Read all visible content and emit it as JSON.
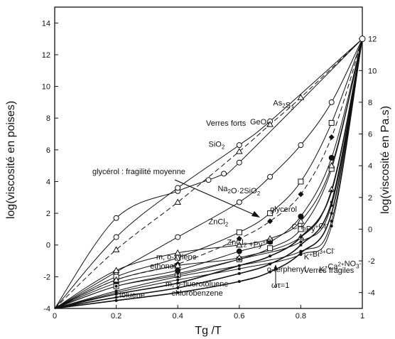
{
  "chart_data": {
    "type": "line",
    "title": "",
    "xlabel": "Tg /T",
    "ylabel_left": "log(viscosité en poises)",
    "ylabel_right": "log(viscosité en Pa.s)",
    "xlim": [
      0,
      1
    ],
    "ylim_left": [
      -4,
      15
    ],
    "ylim_right": [
      -5,
      14
    ],
    "x_ticks": [
      "0",
      "0.2",
      "0.4",
      "0.6",
      "0.8",
      "1"
    ],
    "y_ticks_left": [
      "-4",
      "-2",
      "0",
      "2",
      "4",
      "6",
      "8",
      "10",
      "12",
      "14"
    ],
    "y_ticks_right": [
      "-4",
      "-2",
      "0",
      "2",
      "4",
      "6",
      "8",
      "10",
      "12"
    ],
    "grid": false,
    "annotations": {
      "strong": "Verres forts",
      "fragile": "Verres fragiles",
      "glycerol": "glycérol : fragilité moyenne",
      "omega": "ωτ=1"
    },
    "series": [
      {
        "name": "SiO2",
        "marker": "circle",
        "x": [
          0,
          0.2,
          0.4,
          0.5,
          0.55,
          0.6,
          1
        ],
        "y": [
          -4,
          1.7,
          3.4,
          4.1,
          4.5,
          5.2,
          13
        ]
      },
      {
        "name": "GeO2",
        "marker": "circle",
        "x": [
          0,
          0.2,
          0.4,
          0.6,
          0.7,
          1
        ],
        "y": [
          -4,
          0.5,
          3.6,
          6.3,
          7.8,
          13
        ]
      },
      {
        "name": "As2S3",
        "marker": "triangle",
        "x": [
          0,
          0.2,
          0.4,
          0.6,
          0.7,
          0.8,
          1
        ],
        "y": [
          -4,
          -0.3,
          2.7,
          5.9,
          7.6,
          9.3,
          13
        ]
      },
      {
        "name": "Na2O·2SiO2",
        "marker": "circle",
        "x": [
          0,
          0.2,
          0.4,
          0.6,
          0.7,
          0.8,
          0.9,
          1
        ],
        "y": [
          -4,
          -1.7,
          0.5,
          2.7,
          4.3,
          6.3,
          9.0,
          13
        ]
      },
      {
        "name": "glycerol",
        "marker": "square",
        "x": [
          0,
          0.2,
          0.4,
          0.6,
          0.7,
          0.8,
          0.9,
          1
        ],
        "y": [
          -4,
          -2.0,
          -0.8,
          0.8,
          2.0,
          4.0,
          7.7,
          13
        ]
      },
      {
        "name": "ZnCl2",
        "marker": "diamond",
        "x": [
          0,
          0.2,
          0.4,
          0.6,
          0.7,
          0.8,
          0.9,
          1
        ],
        "y": [
          -4,
          -2.2,
          -1.2,
          0.4,
          1.5,
          3.2,
          6.8,
          13
        ]
      },
      {
        "name": "ZnCl2 + Py+Cl-",
        "marker": "circle",
        "x": [
          0,
          0.2,
          0.4,
          0.6,
          0.7,
          0.8,
          0.9,
          1
        ],
        "y": [
          -4,
          -2.4,
          -1.6,
          -0.4,
          0.2,
          1.8,
          5.5,
          13
        ]
      },
      {
        "name": "CH3Py+Cl-",
        "marker": "square",
        "x": [
          0,
          0.2,
          0.4,
          0.6,
          0.7,
          0.8,
          0.9,
          1
        ],
        "y": [
          -4,
          -2.6,
          -1.9,
          -0.9,
          -0.2,
          1.0,
          4.8,
          13
        ]
      },
      {
        "name": "m, o-xylene",
        "marker": "triangle",
        "x": [
          0,
          0.2,
          0.4,
          0.6,
          0.7,
          0.8,
          0.9,
          1
        ],
        "y": [
          -4,
          -1.6,
          -0.5,
          0.0,
          0.4,
          1.5,
          5.0,
          13
        ]
      },
      {
        "name": "ethonol",
        "marker": "triangle",
        "x": [
          0,
          0.2,
          0.4,
          0.6,
          0.8,
          0.9,
          1
        ],
        "y": [
          -4,
          -2.2,
          -1.3,
          -0.8,
          0.5,
          3.5,
          13
        ]
      },
      {
        "name": "m, o-fluorotoluene",
        "marker": "dot",
        "x": [
          0,
          0.2,
          0.4,
          0.6,
          0.8,
          0.9,
          1
        ],
        "y": [
          -4,
          -2.6,
          -1.8,
          -0.9,
          0.2,
          2.5,
          13
        ]
      },
      {
        "name": "chlorobenzene",
        "marker": "dot",
        "x": [
          0,
          0.2,
          0.4,
          0.6,
          0.8,
          0.9,
          1
        ],
        "y": [
          -4,
          -2.9,
          -2.0,
          -1.3,
          -0.4,
          1.5,
          13
        ]
      },
      {
        "name": "toluene",
        "marker": "dot",
        "x": [
          0,
          0.2,
          0.4,
          0.6,
          0.8,
          0.9,
          1
        ],
        "y": [
          -4,
          -3.0,
          -2.2,
          -1.5,
          -0.6,
          1.2,
          13
        ]
      },
      {
        "name": "o-terphenyl",
        "marker": "dot",
        "x": [
          0,
          0.2,
          0.4,
          0.6,
          0.7,
          0.8,
          0.9,
          1
        ],
        "y": [
          -4,
          -3.1,
          -2.4,
          -1.3,
          -0.7,
          0.5,
          3.4,
          13
        ]
      },
      {
        "name": "K+Bi3+Cl-",
        "marker": "dot",
        "x": [
          0,
          0.2,
          0.4,
          0.6,
          0.7,
          0.8,
          0.9,
          1
        ],
        "y": [
          -4,
          -3.3,
          -2.7,
          -1.8,
          -1.2,
          0.0,
          2.7,
          13
        ]
      },
      {
        "name": "K+Ca2+NO3-",
        "marker": "dot",
        "x": [
          0,
          0.2,
          0.4,
          0.6,
          0.7,
          0.8,
          0.9,
          1
        ],
        "y": [
          -4,
          -3.5,
          -3.0,
          -2.3,
          -1.7,
          -0.5,
          2.0,
          13
        ]
      }
    ],
    "series_labels": [
      {
        "text": "SiO",
        "sub": "2",
        "x": 0.5,
        "y": 6.2
      },
      {
        "text": "GeO",
        "sub": "2",
        "x": 0.635,
        "y": 7.6
      },
      {
        "text": "As",
        "sub": "2",
        "text2": "S",
        "sub2": "3",
        "x": 0.71,
        "y": 8.8
      },
      {
        "text": "Na",
        "sub": "2",
        "text2": "O·2SiO",
        "sub2": "2",
        "x": 0.53,
        "y": 3.4
      },
      {
        "text": "ZnCl",
        "sub": "2",
        "x": 0.5,
        "y": 1.3
      },
      {
        "text": "ZnCl",
        "sub": "2",
        "text2": " +Py",
        "sup2": "+",
        "text3": "Cl",
        "sup3": "-",
        "x": 0.56,
        "y": 0.0
      },
      {
        "text": "glycerol",
        "x": 0.7,
        "y": 2.1
      },
      {
        "text": "CH",
        "sub": "3",
        "text2": "Py",
        "sup2": "+",
        "text3": "Cl",
        "sup3": "-",
        "x": 0.77,
        "y": 1.0
      },
      {
        "text": "K",
        "sup": "+",
        "text2": "Bi",
        "sup2": "3+",
        "text3": "Cl",
        "sup3": "-",
        "x": 0.81,
        "y": -0.9
      },
      {
        "text": "K",
        "sup": "+",
        "text2": "Ca",
        "sup2": "2+",
        "text3": "NO",
        "sup3": "-",
        "sub3": "3",
        "x": 0.86,
        "y": -1.7
      },
      {
        "text": "o-terphenyl",
        "x": 0.69,
        "y": -1.7
      },
      {
        "text": "m, o-xylene",
        "x": 0.33,
        "y": -0.9
      },
      {
        "text": "ethonol",
        "x": 0.31,
        "y": -1.5
      },
      {
        "text": "m, o-fluorotoluene",
        "x": 0.36,
        "y": -2.6
      },
      {
        "text": "chlorobenzene",
        "x": 0.38,
        "y": -3.2
      },
      {
        "text": "toluene",
        "x": 0.21,
        "y": -3.3
      }
    ]
  }
}
